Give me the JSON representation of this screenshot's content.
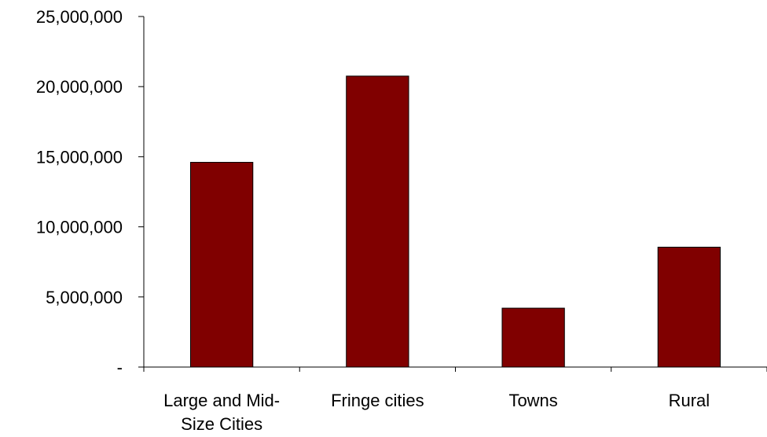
{
  "chart_data": {
    "type": "bar",
    "title": "",
    "xlabel": "",
    "ylabel": "",
    "categories": [
      [
        "Large and Mid-",
        "Size Cities"
      ],
      [
        "Fringe cities"
      ],
      [
        "Towns"
      ],
      [
        "Rural"
      ]
    ],
    "values": [
      14600000,
      20750000,
      4200000,
      8550000
    ],
    "ylim": [
      0,
      25000000
    ],
    "yticks": [
      0,
      5000000,
      10000000,
      15000000,
      20000000,
      25000000
    ],
    "ytick_labels": [
      "-",
      "5,000,000",
      "10,000,000",
      "15,000,000",
      "20,000,000",
      "25,000,000"
    ],
    "grid": false,
    "legend": "none",
    "bar_color": "#800000"
  }
}
